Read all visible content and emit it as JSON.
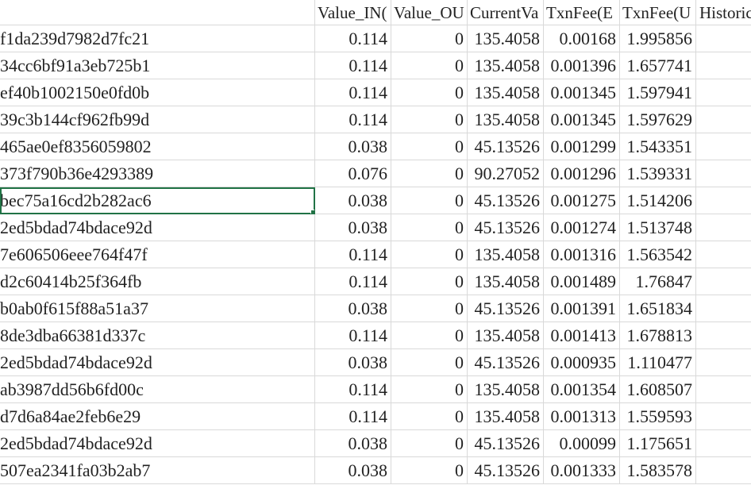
{
  "sheet": {
    "headers": [
      "",
      "Value_IN(",
      "Value_OU",
      "CurrentVa",
      "TxnFee(E",
      "TxnFee(U",
      "Historic"
    ],
    "rows": [
      [
        "f1da239d7982d7fc21",
        "0.114",
        "0",
        "135.4058",
        "0.00168",
        "1.995856",
        ""
      ],
      [
        "34cc6bf91a3eb725b1",
        "0.114",
        "0",
        "135.4058",
        "0.001396",
        "1.657741",
        ""
      ],
      [
        "ef40b1002150e0fd0b",
        "0.114",
        "0",
        "135.4058",
        "0.001345",
        "1.597941",
        ""
      ],
      [
        "39c3b144cf962fb99d",
        "0.114",
        "0",
        "135.4058",
        "0.001345",
        "1.597629",
        ""
      ],
      [
        "465ae0ef8356059802",
        "0.038",
        "0",
        "45.13526",
        "0.001299",
        "1.543351",
        ""
      ],
      [
        "373f790b36e4293389",
        "0.076",
        "0",
        "90.27052",
        "0.001296",
        "1.539331",
        ""
      ],
      [
        "bec75a16cd2b282ac6",
        "0.038",
        "0",
        "45.13526",
        "0.001275",
        "1.514206",
        ""
      ],
      [
        "2ed5bdad74bdace92d",
        "0.038",
        "0",
        "45.13526",
        "0.001274",
        "1.513748",
        ""
      ],
      [
        "7e606506eee764f47f",
        "0.114",
        "0",
        "135.4058",
        "0.001316",
        "1.563542",
        ""
      ],
      [
        "d2c60414b25f364fb",
        "0.114",
        "0",
        "135.4058",
        "0.001489",
        "1.76847",
        ""
      ],
      [
        "b0ab0f615f88a51a37",
        "0.038",
        "0",
        "45.13526",
        "0.001391",
        "1.651834",
        ""
      ],
      [
        "8de3dba66381d337c",
        "0.114",
        "0",
        "135.4058",
        "0.001413",
        "1.678813",
        ""
      ],
      [
        "2ed5bdad74bdace92d",
        "0.038",
        "0",
        "45.13526",
        "0.000935",
        "1.110477",
        ""
      ],
      [
        "ab3987dd56b6fd00c",
        "0.114",
        "0",
        "135.4058",
        "0.001354",
        "1.608507",
        ""
      ],
      [
        "d7d6a84ae2feb6e29",
        "0.114",
        "0",
        "135.4058",
        "0.001313",
        "1.559593",
        ""
      ],
      [
        "2ed5bdad74bdace92d",
        "0.038",
        "0",
        "45.13526",
        "0.00099",
        "1.175651",
        ""
      ],
      [
        "507ea2341fa03b2ab7",
        "0.038",
        "0",
        "45.13526",
        "0.001333",
        "1.583578",
        ""
      ]
    ]
  }
}
